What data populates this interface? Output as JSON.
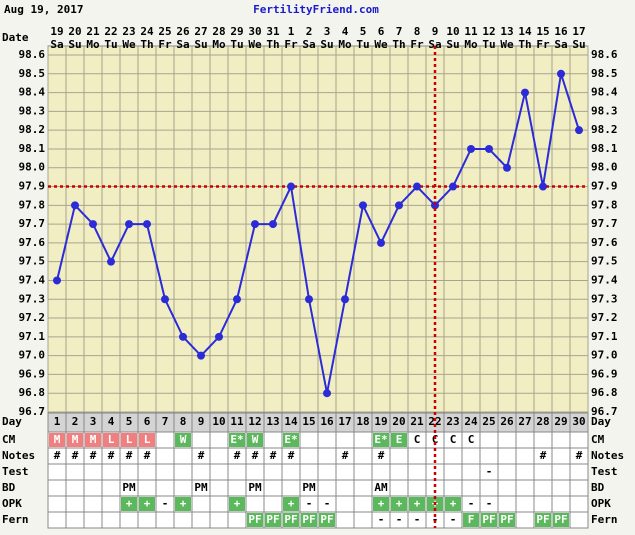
{
  "chart_data": {
    "type": "line",
    "date": "Aug 19, 2017",
    "title": "FertilityFriend.com",
    "date_label": "Date",
    "categories": [
      "19",
      "20",
      "21",
      "22",
      "23",
      "24",
      "25",
      "26",
      "27",
      "28",
      "29",
      "30",
      "31",
      "1",
      "2",
      "3",
      "4",
      "5",
      "6",
      "7",
      "8",
      "9",
      "10",
      "11",
      "12",
      "13",
      "14",
      "15",
      "16",
      "17"
    ],
    "weekdays": [
      "Sa",
      "Su",
      "Mo",
      "Tu",
      "We",
      "Th",
      "Fr",
      "Sa",
      "Su",
      "Mo",
      "Tu",
      "We",
      "Th",
      "Fr",
      "Sa",
      "Su",
      "Mo",
      "Tu",
      "We",
      "Th",
      "Fr",
      "Sa",
      "Su",
      "Mo",
      "Tu",
      "We",
      "Th",
      "Fr",
      "Sa",
      "Su"
    ],
    "series": [
      {
        "color": "#2b2bd8",
        "values": [
          97.4,
          97.8,
          97.7,
          97.5,
          97.7,
          97.7,
          97.3,
          97.1,
          97.0,
          97.1,
          97.3,
          97.7,
          97.7,
          97.9,
          97.3,
          96.8,
          97.3,
          97.8,
          97.6,
          97.8,
          97.9,
          97.8,
          97.9,
          98.1,
          98.1,
          98.0,
          98.4,
          97.9,
          98.5,
          98.2
        ]
      }
    ],
    "ylim": [
      96.7,
      98.6
    ],
    "yticks": [
      96.7,
      96.8,
      96.9,
      {
        "value": 97,
        "label": "97.0"
      },
      97.1,
      97.2,
      97.3,
      97.4,
      97.5,
      97.6,
      97.7,
      97.8,
      97.9,
      {
        "value": 98,
        "label": "98.0"
      },
      98.1,
      98.2,
      98.3,
      98.4,
      98.5,
      98.6
    ],
    "grid": true,
    "coverline": 97.9,
    "ovulation_day": 22,
    "line_color": "#cc0000",
    "day_row": {
      "label": "Day",
      "cells": [
        1,
        2,
        3,
        4,
        5,
        6,
        7,
        8,
        9,
        10,
        11,
        12,
        13,
        14,
        15,
        16,
        17,
        18,
        19,
        20,
        21,
        22,
        23,
        24,
        25,
        26,
        27,
        28,
        29,
        30
      ]
    },
    "rows": [
      {
        "label": "CM",
        "cells": [
          "M",
          "M",
          "M",
          "L",
          "L",
          "L",
          null,
          "W",
          null,
          null,
          "E*",
          "W",
          null,
          "E*",
          null,
          null,
          null,
          null,
          "E*",
          "E",
          "C",
          "C",
          "C",
          "C",
          null,
          null,
          null,
          null,
          null,
          null
        ],
        "colors": [
          "#f08080",
          "#f08080",
          "#f08080",
          "#f08080",
          "#f08080",
          "#f08080",
          null,
          "#5cb85c",
          null,
          null,
          "#5cb85c",
          "#5cb85c",
          null,
          "#5cb85c",
          null,
          null,
          null,
          null,
          "#5cb85c",
          "#5cb85c",
          null,
          null,
          null,
          null,
          null,
          null,
          null,
          null,
          null,
          null
        ]
      },
      {
        "label": "Notes",
        "cells": [
          "#",
          "#",
          "#",
          "#",
          "#",
          "#",
          null,
          null,
          "#",
          null,
          "#",
          "#",
          "#",
          "#",
          null,
          null,
          "#",
          null,
          "#",
          null,
          null,
          null,
          null,
          null,
          null,
          null,
          null,
          "#",
          null,
          "#"
        ]
      },
      {
        "label": "Test",
        "cells": [
          null,
          null,
          null,
          null,
          null,
          null,
          null,
          null,
          null,
          null,
          null,
          null,
          null,
          null,
          null,
          null,
          null,
          null,
          null,
          null,
          null,
          null,
          null,
          null,
          "-",
          null,
          null,
          null,
          null,
          null
        ]
      },
      {
        "label": "BD",
        "cells": [
          null,
          null,
          null,
          null,
          "PM",
          null,
          null,
          null,
          "PM",
          null,
          null,
          "PM",
          null,
          null,
          "PM",
          null,
          null,
          null,
          "AM",
          null,
          null,
          null,
          null,
          null,
          null,
          null,
          null,
          null,
          null,
          null
        ]
      },
      {
        "label": "OPK",
        "cells": [
          null,
          null,
          null,
          null,
          "+",
          "+",
          "-",
          "+",
          null,
          null,
          "+",
          null,
          null,
          "+",
          "-",
          "-",
          null,
          null,
          "+",
          "+",
          "+",
          "+",
          "+",
          "-",
          "-",
          null,
          null,
          null,
          null,
          null
        ],
        "colors": [
          null,
          null,
          null,
          null,
          "#5cb85c",
          "#5cb85c",
          null,
          "#5cb85c",
          null,
          null,
          "#5cb85c",
          null,
          null,
          "#5cb85c",
          null,
          null,
          null,
          null,
          "#5cb85c",
          "#5cb85c",
          "#5cb85c",
          "#5cb85c",
          "#5cb85c",
          null,
          null,
          null,
          null,
          null,
          null,
          null
        ]
      },
      {
        "label": "Fern",
        "cells": [
          null,
          null,
          null,
          null,
          null,
          null,
          null,
          null,
          null,
          null,
          null,
          "PF",
          "PF",
          "PF",
          "PF",
          "PF",
          null,
          null,
          "-",
          "-",
          "-",
          "-",
          "-",
          "F",
          "PF",
          "PF",
          null,
          "PF",
          "PF",
          null
        ],
        "colors": [
          null,
          null,
          null,
          null,
          null,
          null,
          null,
          null,
          null,
          null,
          null,
          "#5cb85c",
          "#5cb85c",
          "#5cb85c",
          "#5cb85c",
          "#5cb85c",
          null,
          null,
          null,
          null,
          null,
          null,
          null,
          "#5cb85c",
          "#5cb85c",
          "#5cb85c",
          null,
          "#5cb85c",
          "#5cb85c",
          null
        ]
      }
    ]
  }
}
